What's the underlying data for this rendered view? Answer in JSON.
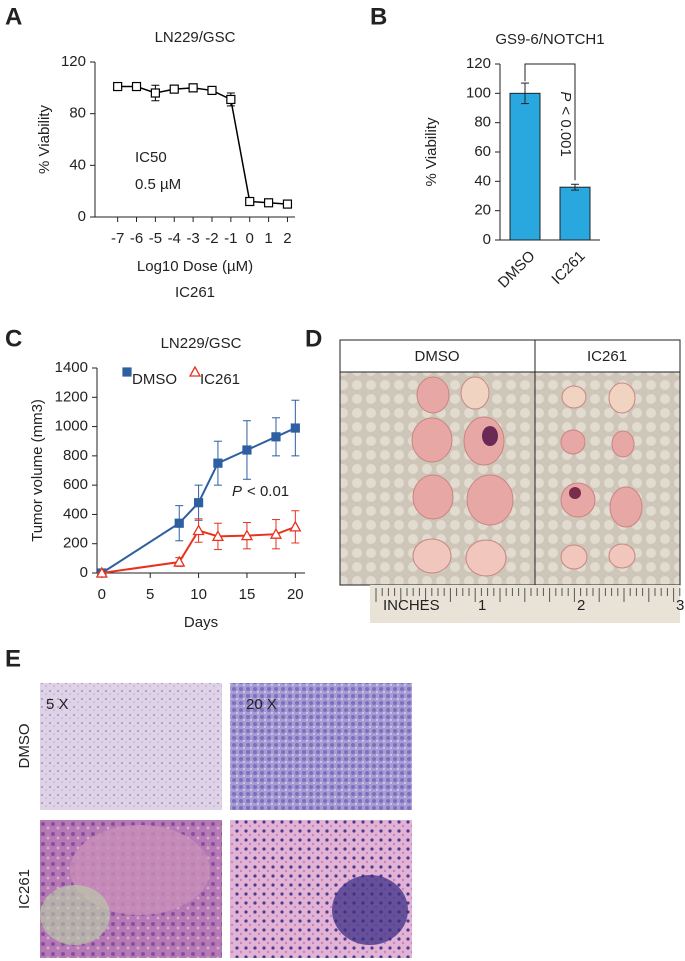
{
  "chart_data": [
    {
      "panel": "A",
      "type": "line",
      "title": "LN229/GSC",
      "xlabel": "Log10 Dose (µM)",
      "drug": "IC261",
      "ylabel": "% Viability",
      "annotations": [
        "IC50",
        "0.5 µM"
      ],
      "x": [
        -7,
        -6,
        -5,
        -4,
        -3,
        -2,
        -1,
        0,
        1,
        2
      ],
      "values": [
        101,
        101,
        96,
        99,
        100,
        98,
        91,
        12,
        11,
        10
      ],
      "errors": [
        3,
        3,
        6,
        3,
        3,
        3,
        5,
        1,
        1,
        1
      ],
      "color": "#000000",
      "xlim": [
        -8.2,
        2.4
      ],
      "xticks": [
        -7,
        -6,
        -5,
        -4,
        -3,
        -2,
        -1,
        0,
        1,
        2
      ],
      "ylim": [
        0,
        120
      ],
      "yticks": [
        0,
        40,
        80,
        120
      ]
    },
    {
      "panel": "B",
      "type": "bar",
      "title": "GS9-6/NOTCH1",
      "ylabel": "% Viability",
      "annotation": {
        "italic": "P",
        "text": "< 0.001"
      },
      "categories": [
        "DMSO",
        "IC261"
      ],
      "values": [
        100,
        36
      ],
      "errors": [
        7,
        2
      ],
      "color": "#29a8e0",
      "ylim": [
        0,
        120
      ],
      "yticks": [
        0,
        20,
        40,
        60,
        80,
        100,
        120
      ]
    },
    {
      "panel": "C",
      "type": "line",
      "title": "LN229/GSC",
      "xlabel": "Days",
      "ylabel": "Tumor volume (mm3)",
      "annotation": {
        "italic": "P",
        "text": "< 0.01"
      },
      "x": [
        0,
        8,
        10,
        12,
        15,
        18,
        20
      ],
      "series": [
        {
          "name": "DMSO",
          "color": "#2e5fa1",
          "values": [
            0,
            340,
            480,
            750,
            840,
            930,
            990
          ],
          "errors": [
            0,
            120,
            120,
            150,
            200,
            130,
            190
          ]
        },
        {
          "name": "IC261",
          "color": "#e8321e",
          "values": [
            0,
            75,
            290,
            250,
            255,
            265,
            315
          ],
          "errors": [
            0,
            30,
            80,
            90,
            90,
            100,
            110
          ]
        }
      ],
      "xlim": [
        -0.5,
        21
      ],
      "xticks": [
        0,
        5,
        10,
        15,
        20
      ],
      "ylim": [
        0,
        1400
      ],
      "yticks": [
        0,
        200,
        400,
        600,
        800,
        1000,
        1200,
        1400
      ]
    }
  ],
  "tumor_photo": {
    "panel": "D",
    "columns": [
      "DMSO",
      "IC261"
    ],
    "ruler": [
      "INCHES",
      "1",
      "2",
      "3"
    ]
  },
  "histology": {
    "panel": "E",
    "rows": [
      "DMSO",
      "IC261"
    ],
    "magnifications": [
      "5 X",
      "20 X"
    ]
  }
}
